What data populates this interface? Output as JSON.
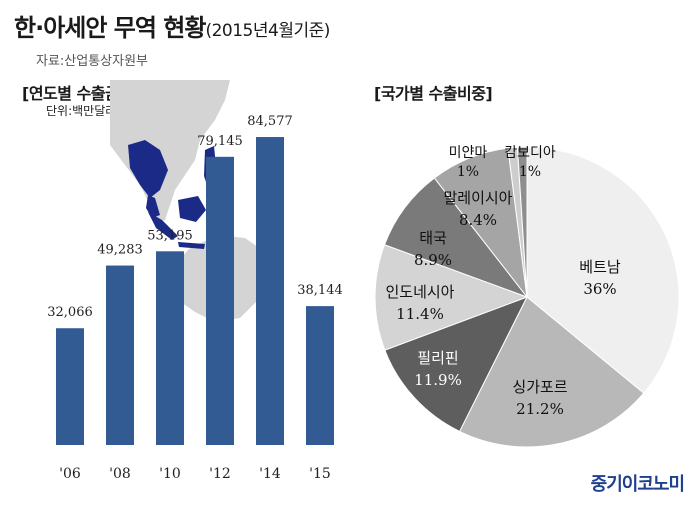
{
  "title": {
    "main": "한·아세안 무역 현황",
    "sub": "(2015년4월기준)",
    "source": "자료:산업통상자원부"
  },
  "bar_section": {
    "title": "[연도별 수출금액]",
    "unit": "단위:백만달러"
  },
  "pie_section": {
    "title": "[국가별 수출비중]"
  },
  "logo": "중기이코노미",
  "colors": {
    "bar": "#325b94",
    "map_land": "#d4d4d4",
    "map_asean": "#1c2a87",
    "pie": [
      "#efefef",
      "#b8b8b8",
      "#5e5e5e",
      "#d4d4d4",
      "#7a7a7a",
      "#a5a5a5",
      "#cdcdcd",
      "#8e8e8e"
    ]
  },
  "chart_data": [
    {
      "type": "bar",
      "categories": [
        "'06",
        "'08",
        "'10",
        "'12",
        "'14",
        "'15"
      ],
      "values": [
        32066,
        49283,
        53195,
        79145,
        84577,
        38144
      ],
      "value_labels": [
        "32,066",
        "49,283",
        "53,195",
        "79,145",
        "84,577",
        "38,144"
      ],
      "title": "[연도별 수출금액]",
      "ylabel": "단위:백만달러",
      "ylim": [
        0,
        92000
      ],
      "grid": false
    },
    {
      "type": "pie",
      "slices": [
        {
          "name": "베트남",
          "value": 36,
          "label": "36%"
        },
        {
          "name": "싱가포르",
          "value": 21.2,
          "label": "21.2%"
        },
        {
          "name": "필리핀",
          "value": 11.9,
          "label": "11.9%"
        },
        {
          "name": "인도네시아",
          "value": 11.4,
          "label": "11.4%"
        },
        {
          "name": "태국",
          "value": 8.9,
          "label": "8.9%"
        },
        {
          "name": "말레이시아",
          "value": 8.4,
          "label": "8.4%"
        },
        {
          "name": "미얀마",
          "value": 1,
          "label": "1%"
        },
        {
          "name": "캄보디아",
          "value": 1,
          "label": "1%"
        }
      ],
      "title": "[국가별 수출비중]"
    }
  ]
}
